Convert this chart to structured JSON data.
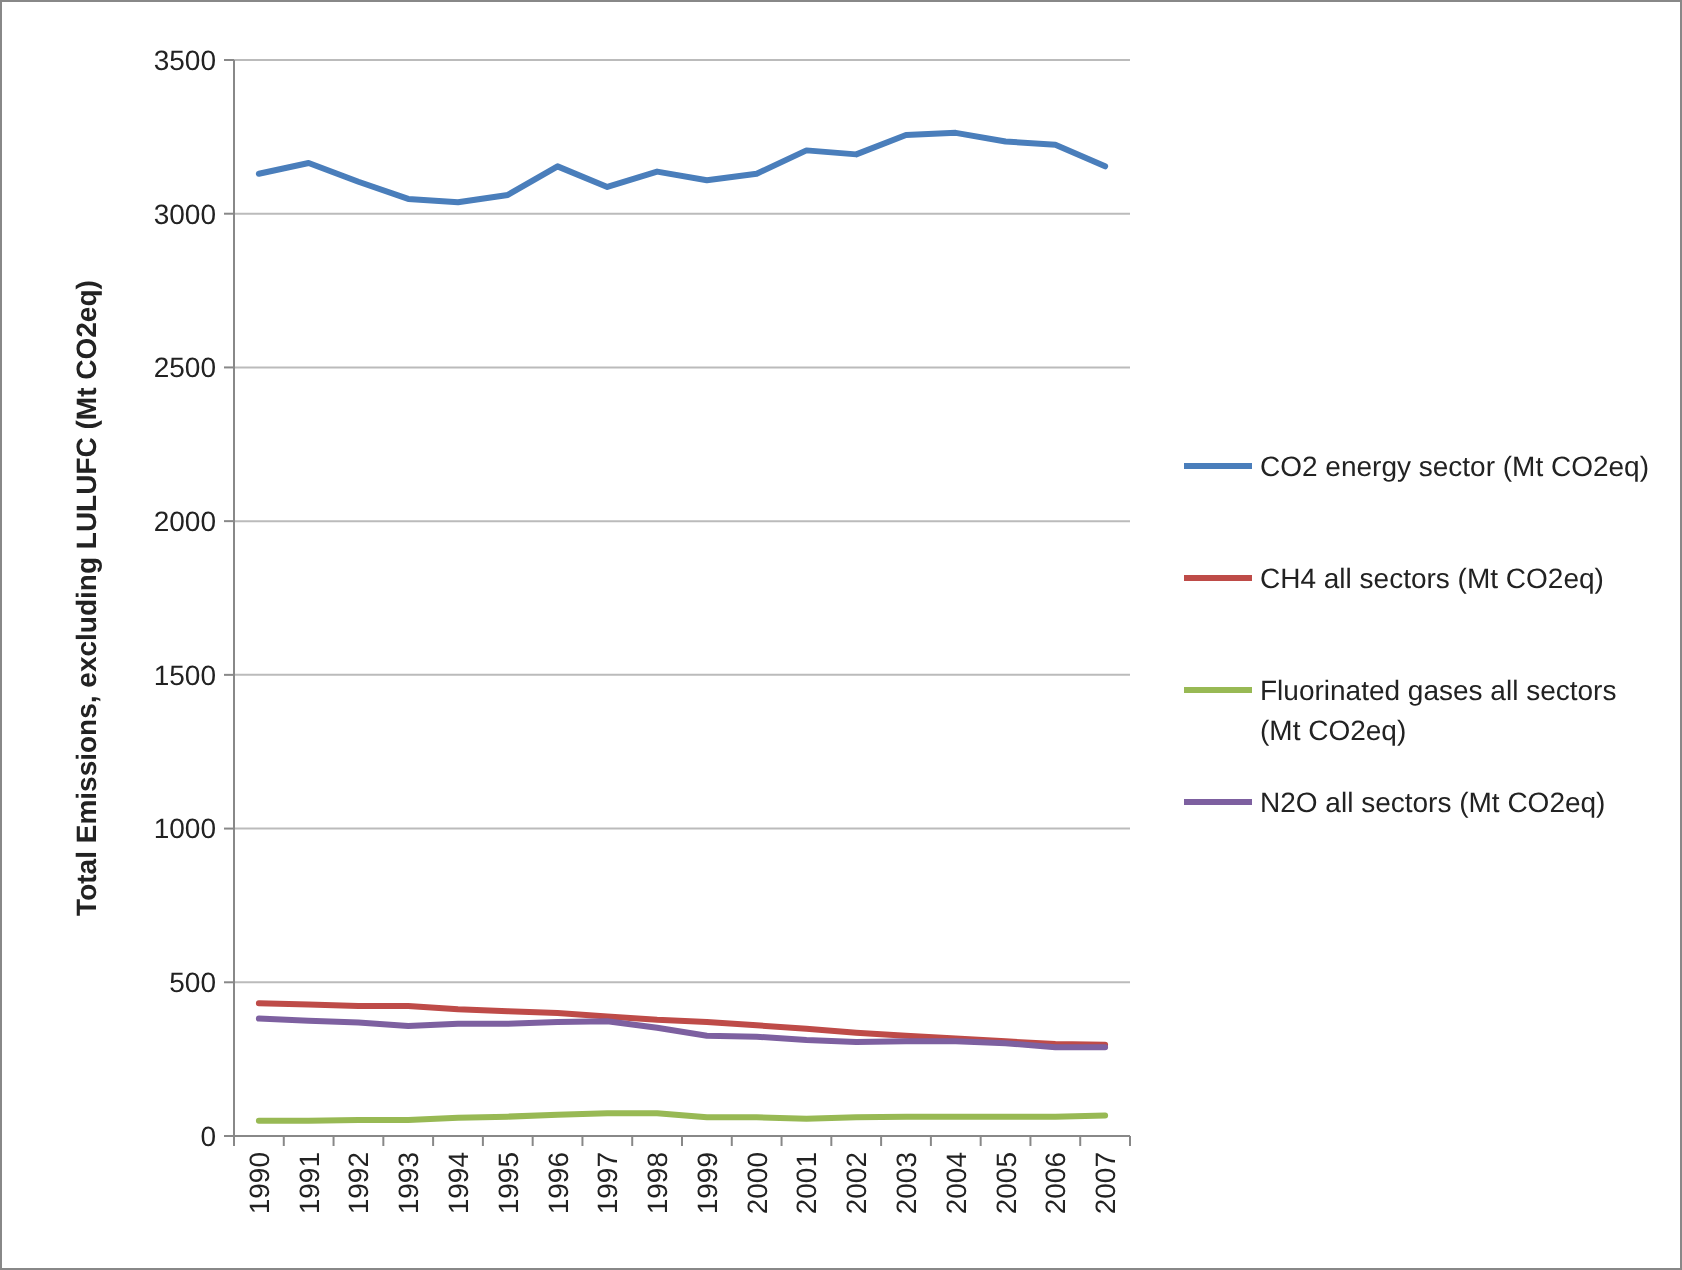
{
  "chart_data": {
    "type": "line",
    "ylabel": "Total Emissions, excluding LULUFC (Mt CO2eq)",
    "categories": [
      "1990",
      "1991",
      "1992",
      "1993",
      "1994",
      "1995",
      "1996",
      "1997",
      "1998",
      "1999",
      "2000",
      "2001",
      "2002",
      "2003",
      "2004",
      "2005",
      "2006",
      "2007"
    ],
    "series": [
      {
        "name": "CO2 energy sector (Mt CO2eq)",
        "color": "#4a7ebb",
        "values": [
          3130,
          3165,
          3104,
          3048,
          3037,
          3061,
          3154,
          3087,
          3137,
          3109,
          3130,
          3206,
          3193,
          3256,
          3263,
          3235,
          3224,
          3154
        ]
      },
      {
        "name": "CH4 all sectors (Mt CO2eq)",
        "color": "#be4b48",
        "values": [
          432,
          428,
          423,
          423,
          412,
          406,
          400,
          389,
          378,
          371,
          360,
          349,
          336,
          326,
          317,
          308,
          299,
          297
        ]
      },
      {
        "name": "Fluorinated gases all sectors (Mt CO2eq)",
        "color": "#98b954",
        "values": [
          50,
          50,
          52,
          52,
          59,
          63,
          69,
          74,
          74,
          61,
          61,
          56,
          61,
          63,
          63,
          63,
          63,
          67
        ]
      },
      {
        "name": "N2O all sectors (Mt CO2eq)",
        "color": "#7d60a0",
        "values": [
          382,
          375,
          369,
          358,
          365,
          365,
          371,
          373,
          352,
          326,
          323,
          312,
          306,
          308,
          308,
          302,
          289,
          289
        ]
      }
    ],
    "ylim": [
      0,
      3500
    ],
    "yticks": [
      0,
      500,
      1000,
      1500,
      2000,
      2500,
      3000,
      3500
    ],
    "grid": "y",
    "legend": "right",
    "marker": "none",
    "line_style": "solid"
  }
}
